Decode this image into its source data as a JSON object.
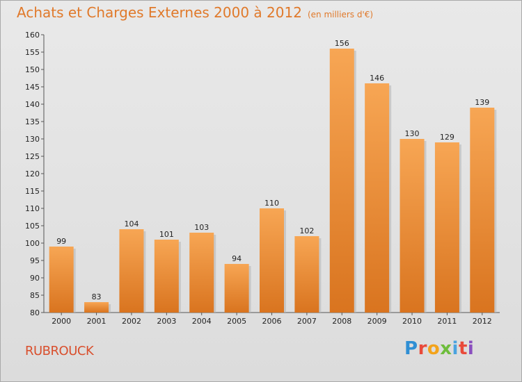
{
  "header": {
    "title": "Achats et Charges Externes 2000 à 2012",
    "subtitle": "(en milliers d'€)"
  },
  "footer": {
    "commune": "RUBROUCK",
    "logo": {
      "letters": [
        "P",
        "r",
        "o",
        "x",
        "i",
        "t",
        "i"
      ],
      "colors": [
        "#2f8fd4",
        "#e94a3a",
        "#f3a31b",
        "#6ebd3c",
        "#4aa3df",
        "#e94a3a",
        "#8a4fbf"
      ]
    }
  },
  "colors": {
    "bar_light": "#f7a654",
    "bar_dark": "#d9741f",
    "title": "#e0792a",
    "commune": "#d94f2d"
  },
  "chart_data": {
    "type": "bar",
    "title": "Achats et Charges Externes 2000 à 2012",
    "subtitle": "(en milliers d'€)",
    "xlabel": "",
    "ylabel": "",
    "categories": [
      "2000",
      "2001",
      "2002",
      "2003",
      "2004",
      "2005",
      "2006",
      "2007",
      "2008",
      "2009",
      "2010",
      "2011",
      "2012"
    ],
    "values": [
      99,
      83,
      104,
      101,
      103,
      94,
      110,
      102,
      156,
      146,
      130,
      129,
      139
    ],
    "ylim": [
      80,
      160
    ],
    "yticks": [
      80,
      85,
      90,
      95,
      100,
      105,
      110,
      115,
      120,
      125,
      130,
      135,
      140,
      145,
      150,
      155,
      160
    ],
    "grid": false,
    "legend": "none"
  }
}
